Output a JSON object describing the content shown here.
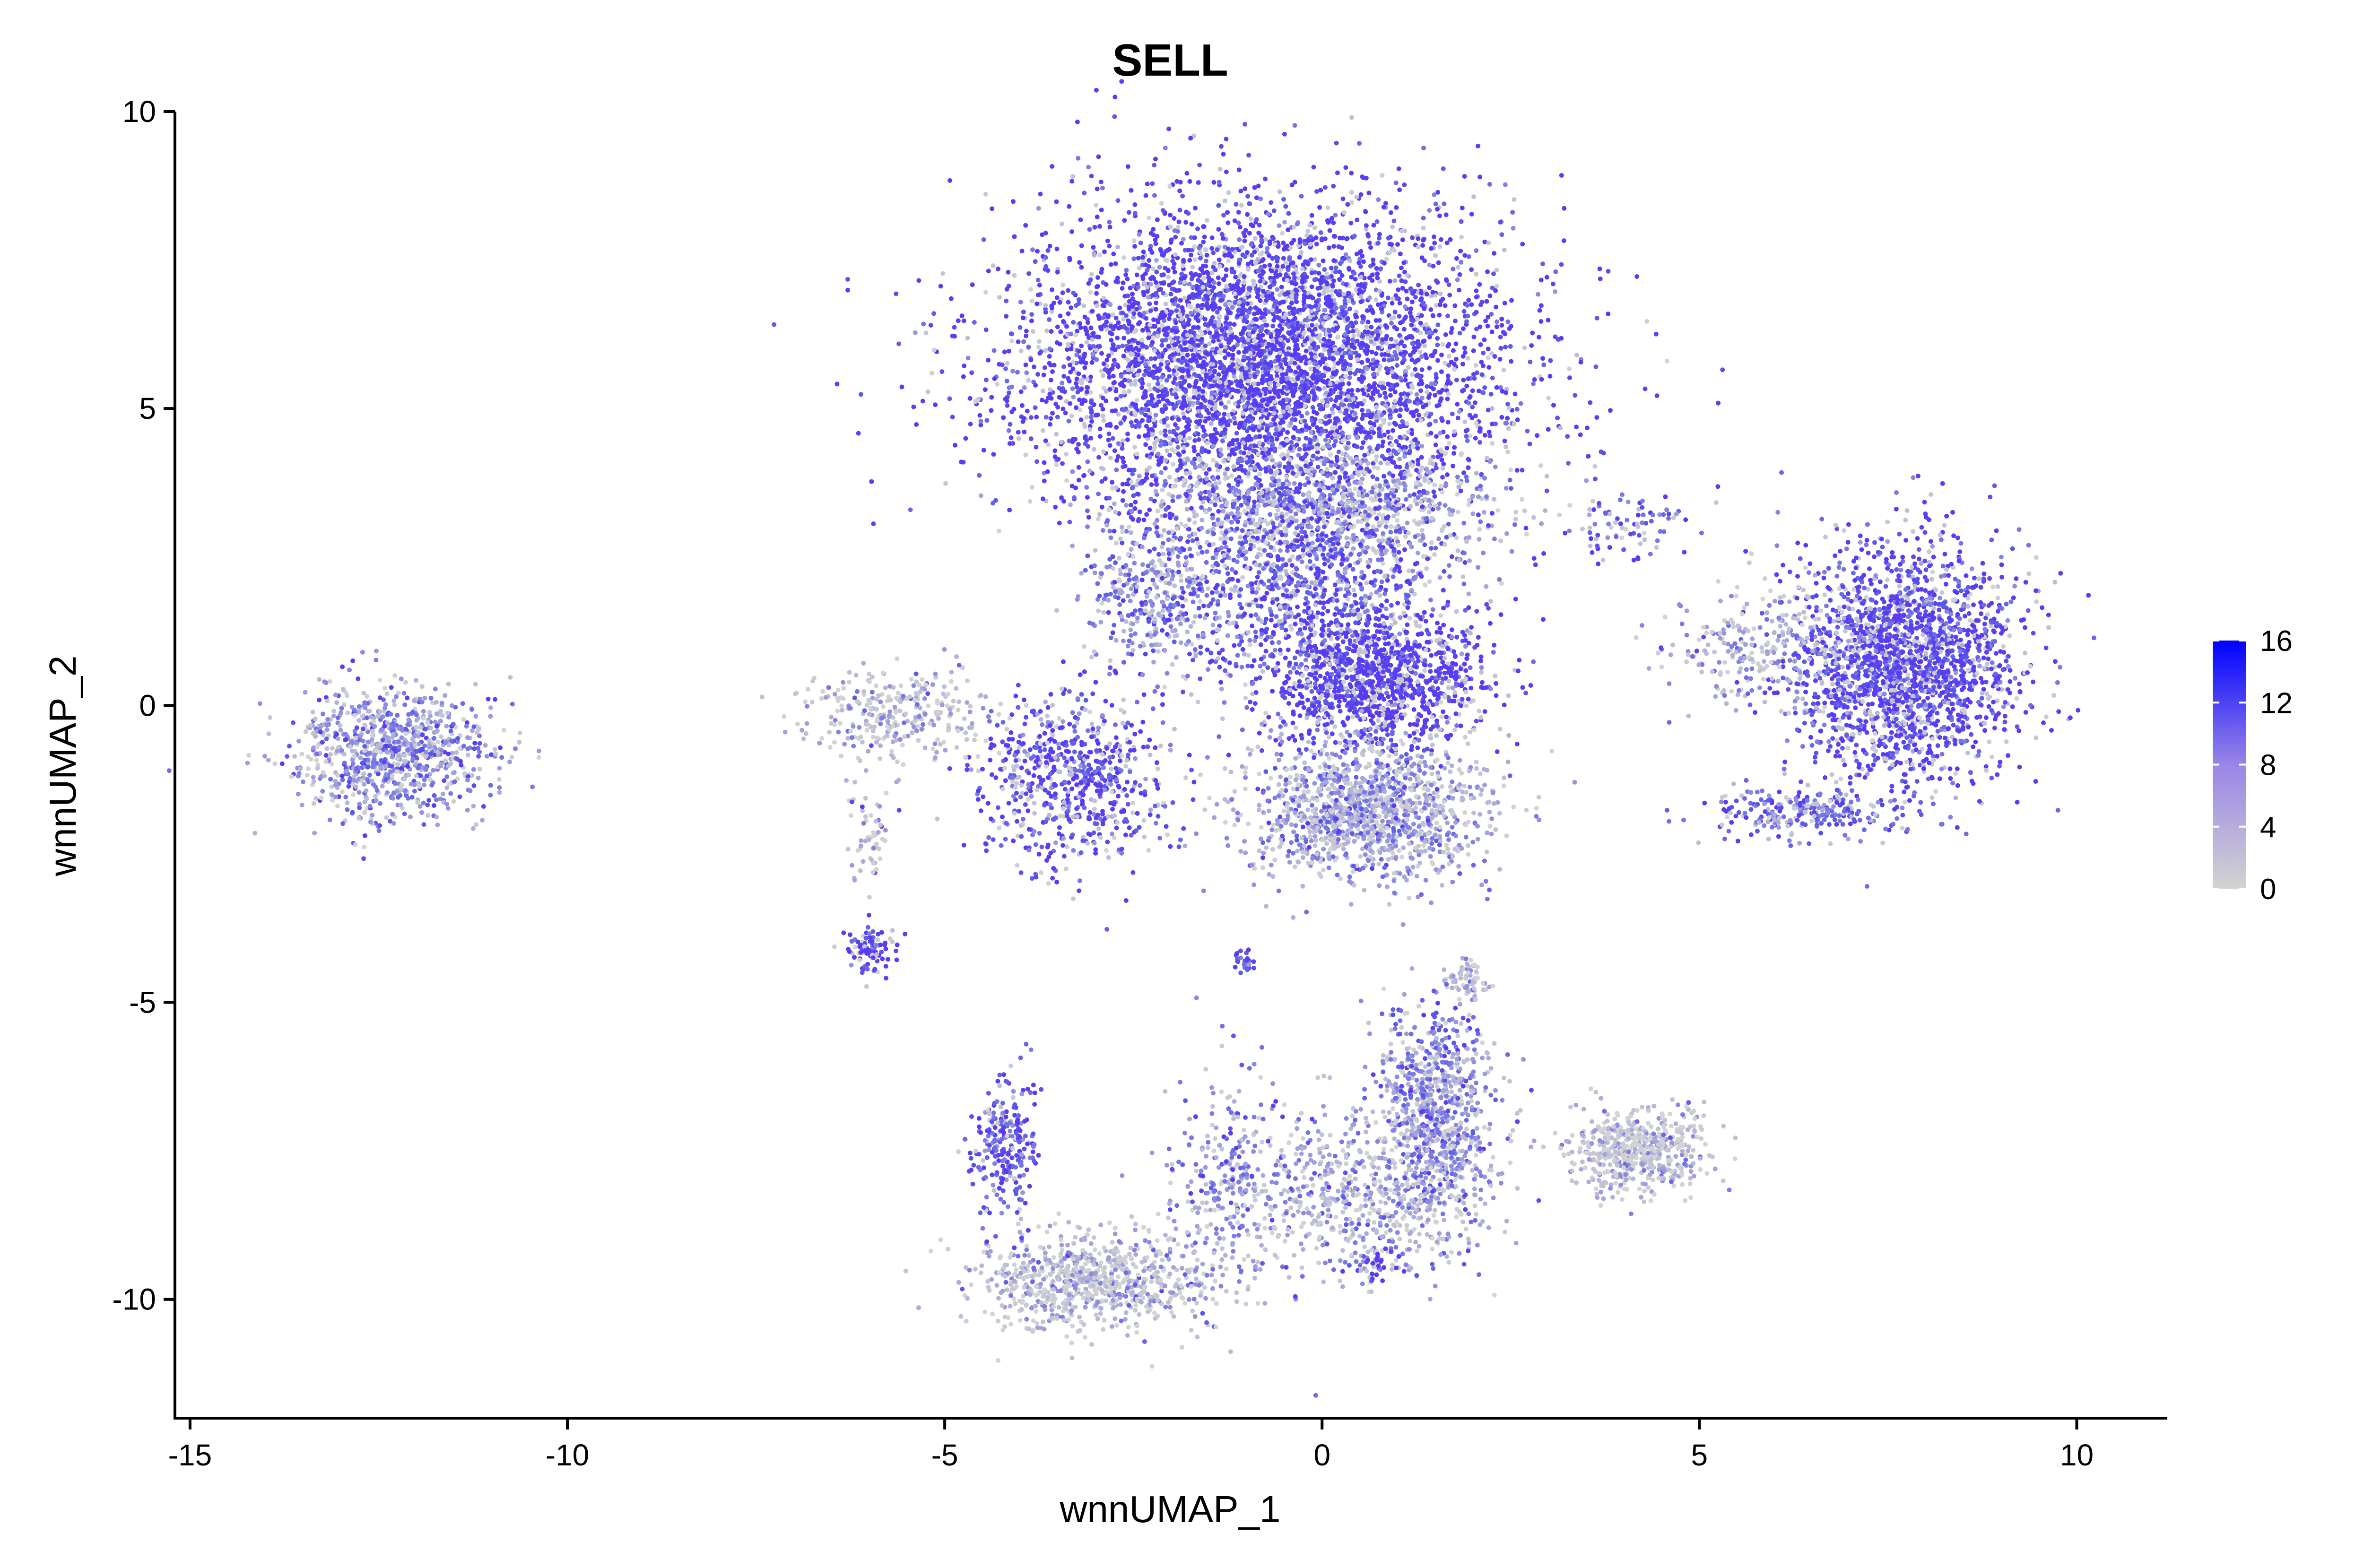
{
  "chart_data": {
    "type": "scatter",
    "title": "SELL",
    "xlabel": "wnnUMAP_1",
    "ylabel": "wnnUMAP_2",
    "xlim": [
      -15.2,
      11.2
    ],
    "ylim": [
      -12,
      10
    ],
    "xticks": [
      -15,
      -10,
      -5,
      0,
      5,
      10
    ],
    "yticks": [
      -10,
      -5,
      0,
      5,
      10
    ],
    "xtick_labels": [
      "-15",
      "-10",
      "-5",
      "0",
      "5",
      "10"
    ],
    "ytick_labels": [
      "-10",
      "-5",
      "0",
      "5",
      "10"
    ],
    "grid": false,
    "color_scale": {
      "low_color": "#d3d3d3",
      "high_color": "#0000ff",
      "min": 0,
      "max": 16,
      "ticks": [
        0,
        4,
        8,
        12,
        16
      ],
      "tick_labels": [
        "0",
        "4",
        "8",
        "12",
        "16"
      ],
      "legend_placement": "right"
    },
    "clusters": [
      {
        "cx": -0.8,
        "cy": 5.8,
        "sx": 1.6,
        "sy": 1.3,
        "n": 5200,
        "expr_mean": 10.5
      },
      {
        "cx": 0.1,
        "cy": 3.4,
        "sx": 1.2,
        "sy": 0.6,
        "n": 800,
        "expr_mean": 3.0
      },
      {
        "cx": -0.2,
        "cy": 2.0,
        "sx": 1.0,
        "sy": 1.2,
        "n": 1200,
        "expr_mean": 8.0
      },
      {
        "cx": 0.8,
        "cy": 0.4,
        "sx": 0.7,
        "sy": 0.6,
        "n": 1100,
        "expr_mean": 11.0
      },
      {
        "cx": 0.6,
        "cy": -1.8,
        "sx": 0.8,
        "sy": 0.6,
        "n": 1300,
        "expr_mean": 3.5
      },
      {
        "cx": -3.3,
        "cy": -1.3,
        "sx": 0.6,
        "sy": 0.7,
        "n": 700,
        "expr_mean": 9.0
      },
      {
        "cx": -2.2,
        "cy": 1.8,
        "sx": 0.5,
        "sy": 0.6,
        "n": 350,
        "expr_mean": 5.0
      },
      {
        "cx": -12.3,
        "cy": -0.8,
        "sx": 0.65,
        "sy": 0.55,
        "n": 900,
        "expr_mean": 5.0
      },
      {
        "cx": -5.6,
        "cy": -0.1,
        "sx": 0.6,
        "sy": 0.35,
        "n": 300,
        "expr_mean": 1.5
      },
      {
        "cx": -6.0,
        "cy": -2.2,
        "sx": 0.15,
        "sy": 0.5,
        "n": 60,
        "expr_mean": 2.0
      },
      {
        "cx": -6.0,
        "cy": -4.1,
        "sx": 0.2,
        "sy": 0.2,
        "n": 90,
        "expr_mean": 10.0
      },
      {
        "cx": 7.7,
        "cy": 0.7,
        "sx": 0.75,
        "sy": 1.0,
        "n": 2200,
        "expr_mean": 9.5
      },
      {
        "cx": 6.3,
        "cy": -1.8,
        "sx": 0.6,
        "sy": 0.2,
        "n": 250,
        "expr_mean": 7.0
      },
      {
        "cx": 5.8,
        "cy": 1.0,
        "sx": 0.6,
        "sy": 0.5,
        "n": 250,
        "expr_mean": 3.0
      },
      {
        "cx": 4.1,
        "cy": 3.0,
        "sx": 0.35,
        "sy": 0.3,
        "n": 80,
        "expr_mean": 8.0
      },
      {
        "cx": 1.9,
        "cy": -4.6,
        "sx": 0.15,
        "sy": 0.15,
        "n": 70,
        "expr_mean": 2.0
      },
      {
        "cx": 1.5,
        "cy": -6.8,
        "sx": 0.4,
        "sy": 0.9,
        "n": 800,
        "expr_mean": 5.0
      },
      {
        "cx": 0.5,
        "cy": -8.3,
        "sx": 0.9,
        "sy": 0.7,
        "n": 650,
        "expr_mean": 3.0
      },
      {
        "cx": 4.2,
        "cy": -7.5,
        "sx": 0.45,
        "sy": 0.35,
        "n": 550,
        "expr_mean": 1.2
      },
      {
        "cx": -3.0,
        "cy": -9.7,
        "sx": 0.8,
        "sy": 0.4,
        "n": 800,
        "expr_mean": 1.5
      },
      {
        "cx": -4.2,
        "cy": -7.5,
        "sx": 0.2,
        "sy": 0.6,
        "n": 250,
        "expr_mean": 8.0
      },
      {
        "cx": -1.3,
        "cy": -8.0,
        "sx": 0.4,
        "sy": 1.0,
        "n": 250,
        "expr_mean": 5.0
      },
      {
        "cx": -1.0,
        "cy": -4.3,
        "sx": 0.1,
        "sy": 0.1,
        "n": 25,
        "expr_mean": 9.0
      },
      {
        "cx": 0.7,
        "cy": -9.4,
        "sx": 0.15,
        "sy": 0.15,
        "n": 40,
        "expr_mean": 10.0
      }
    ]
  }
}
